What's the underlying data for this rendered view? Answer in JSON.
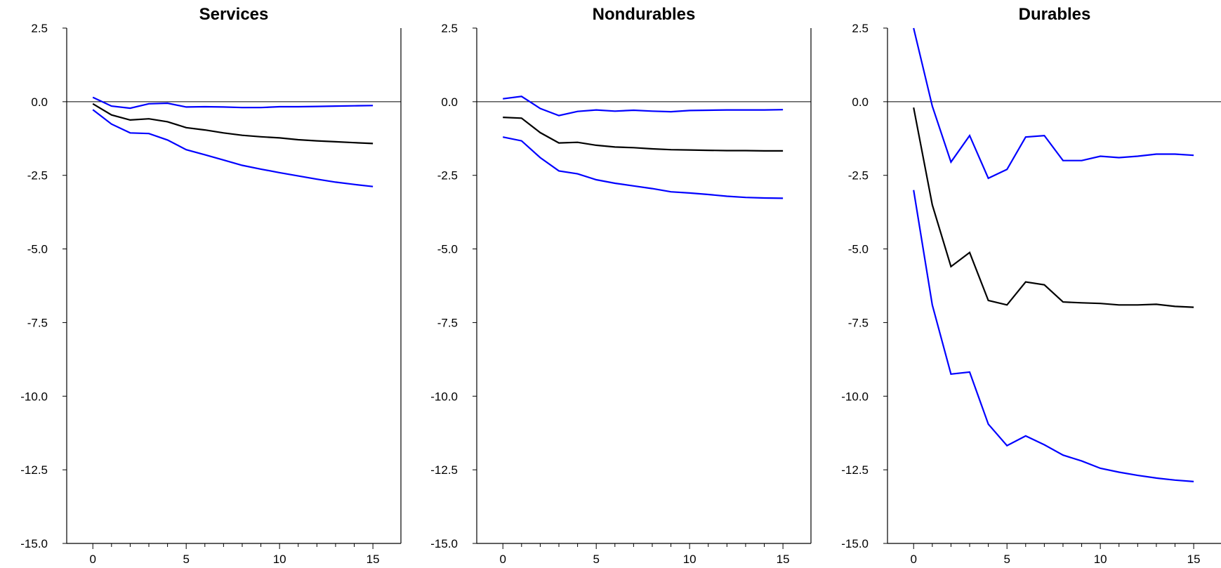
{
  "chart_data": [
    {
      "type": "line",
      "title": "Services",
      "xlabel": "",
      "ylabel": "",
      "xlim": [
        -1.4,
        16.5
      ],
      "ylim": [
        -15,
        2.5
      ],
      "xticks": [
        0,
        5,
        10,
        15
      ],
      "yticks": [
        "2.5",
        "0.0",
        "-2.5",
        "-5.0",
        "-7.5",
        "-10.0",
        "-12.5",
        "-15.0"
      ],
      "x": [
        0,
        1,
        2,
        3,
        4,
        5,
        6,
        7,
        8,
        9,
        10,
        11,
        12,
        13,
        14,
        15
      ],
      "series": [
        {
          "role": "upper",
          "color": "#0000ff",
          "values": [
            0.15,
            -0.15,
            -0.22,
            -0.07,
            -0.05,
            -0.18,
            -0.17,
            -0.18,
            -0.2,
            -0.2,
            -0.17,
            -0.17,
            -0.16,
            -0.15,
            -0.14,
            -0.13
          ]
        },
        {
          "role": "estimate",
          "color": "#000000",
          "values": [
            -0.07,
            -0.45,
            -0.62,
            -0.58,
            -0.68,
            -0.88,
            -0.96,
            -1.06,
            -1.14,
            -1.19,
            -1.23,
            -1.29,
            -1.33,
            -1.36,
            -1.39,
            -1.42
          ]
        },
        {
          "role": "lower",
          "color": "#0000ff",
          "values": [
            -0.27,
            -0.76,
            -1.06,
            -1.08,
            -1.3,
            -1.63,
            -1.8,
            -1.98,
            -2.16,
            -2.29,
            -2.41,
            -2.52,
            -2.63,
            -2.73,
            -2.81,
            -2.88
          ]
        }
      ]
    },
    {
      "type": "line",
      "title": "Nondurables",
      "xlabel": "",
      "ylabel": "",
      "xlim": [
        -1.4,
        16.5
      ],
      "ylim": [
        -15,
        2.5
      ],
      "xticks": [
        0,
        5,
        10,
        15
      ],
      "yticks": [
        "2.5",
        "0.0",
        "-2.5",
        "-5.0",
        "-7.5",
        "-10.0",
        "-12.5",
        "-15.0"
      ],
      "x": [
        0,
        1,
        2,
        3,
        4,
        5,
        6,
        7,
        8,
        9,
        10,
        11,
        12,
        13,
        14,
        15
      ],
      "series": [
        {
          "role": "upper",
          "color": "#0000ff",
          "values": [
            0.1,
            0.18,
            -0.23,
            -0.47,
            -0.33,
            -0.28,
            -0.32,
            -0.29,
            -0.32,
            -0.34,
            -0.3,
            -0.29,
            -0.28,
            -0.28,
            -0.28,
            -0.27
          ]
        },
        {
          "role": "estimate",
          "color": "#000000",
          "values": [
            -0.53,
            -0.56,
            -1.05,
            -1.4,
            -1.38,
            -1.48,
            -1.54,
            -1.56,
            -1.6,
            -1.63,
            -1.64,
            -1.65,
            -1.66,
            -1.66,
            -1.67,
            -1.67
          ]
        },
        {
          "role": "lower",
          "color": "#0000ff",
          "values": [
            -1.2,
            -1.33,
            -1.9,
            -2.35,
            -2.45,
            -2.65,
            -2.77,
            -2.86,
            -2.95,
            -3.06,
            -3.1,
            -3.15,
            -3.21,
            -3.25,
            -3.27,
            -3.28
          ]
        }
      ]
    },
    {
      "type": "line",
      "title": "Durables",
      "xlabel": "",
      "ylabel": "",
      "xlim": [
        -1.4,
        16.5
      ],
      "ylim": [
        -15,
        2.5
      ],
      "xticks": [
        0,
        5,
        10,
        15
      ],
      "yticks": [
        "2.5",
        "0.0",
        "-2.5",
        "-5.0",
        "-7.5",
        "-10.0",
        "-12.5",
        "-15.0"
      ],
      "x": [
        0,
        1,
        2,
        3,
        4,
        5,
        6,
        7,
        8,
        9,
        10,
        11,
        12,
        13,
        14,
        15
      ],
      "series": [
        {
          "role": "upper",
          "color": "#0000ff",
          "values": [
            2.5,
            -0.15,
            -2.05,
            -1.15,
            -2.6,
            -2.3,
            -1.2,
            -1.15,
            -2.0,
            -2.0,
            -1.85,
            -1.9,
            -1.85,
            -1.78,
            -1.78,
            -1.82
          ]
        },
        {
          "role": "estimate",
          "color": "#000000",
          "values": [
            -0.2,
            -3.5,
            -5.6,
            -5.12,
            -6.75,
            -6.9,
            -6.12,
            -6.22,
            -6.8,
            -6.83,
            -6.85,
            -6.9,
            -6.9,
            -6.88,
            -6.95,
            -6.98
          ]
        },
        {
          "role": "lower",
          "color": "#0000ff",
          "values": [
            -3.0,
            -6.9,
            -9.25,
            -9.18,
            -10.95,
            -11.68,
            -11.35,
            -11.65,
            -12.0,
            -12.2,
            -12.45,
            -12.58,
            -12.69,
            -12.78,
            -12.85,
            -12.9
          ]
        }
      ]
    }
  ]
}
